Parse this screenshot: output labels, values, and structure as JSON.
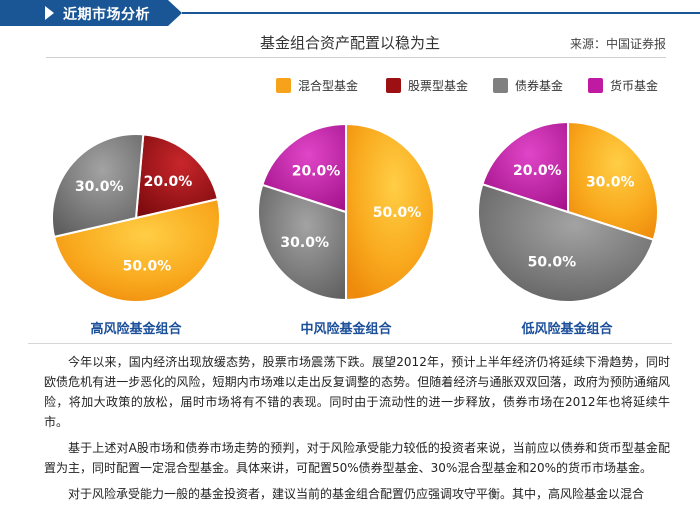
{
  "section": {
    "title": "近期市场分析"
  },
  "chart_data": {
    "type": "pie",
    "title": "基金组合资产配置以稳为主",
    "source": "来源：中国证券报",
    "legend": [
      {
        "name": "混合型基金",
        "color": "#f7a21b"
      },
      {
        "name": "股票型基金",
        "color": "#9c0f13"
      },
      {
        "name": "债券基金",
        "color": "#808080"
      },
      {
        "name": "货币基金",
        "color": "#c01aa3"
      }
    ],
    "pies": [
      {
        "label": "高风险基金组合",
        "slices": [
          {
            "name": "股票型基金",
            "value": 20.0,
            "display": "20.0%"
          },
          {
            "name": "混合型基金",
            "value": 50.0,
            "display": "50.0%"
          },
          {
            "name": "债券基金",
            "value": 30.0,
            "display": "30.0%"
          }
        ]
      },
      {
        "label": "中风险基金组合",
        "slices": [
          {
            "name": "混合型基金",
            "value": 50.0,
            "display": "50.0%"
          },
          {
            "name": "债券基金",
            "value": 30.0,
            "display": "30.0%"
          },
          {
            "name": "货币基金",
            "value": 20.0,
            "display": "20.0%"
          }
        ]
      },
      {
        "label": "低风险基金组合",
        "slices": [
          {
            "name": "混合型基金",
            "value": 30.0,
            "display": "30.0%"
          },
          {
            "name": "债券基金",
            "value": 50.0,
            "display": "50.0%"
          },
          {
            "name": "货币基金",
            "value": 20.0,
            "display": "20.0%"
          }
        ]
      }
    ]
  },
  "article": {
    "paragraphs": [
      "今年以来，国内经济出现放缓态势，股票市场震荡下跌。展望2012年，预计上半年经济仍将延续下滑趋势，同时欧债危机有进一步恶化的风险，短期内市场难以走出反复调整的态势。但随着经济与通胀双双回落，政府为预防通缩风险，将加大政策的放松，届时市场将有不错的表现。同时由于流动性的进一步释放，债券市场在2012年也将延续牛市。",
      "基于上述对A股市场和债券市场走势的预判，对于风险承受能力较低的投资者来说，当前应以债券和货币型基金配置为主，同时配置一定混合型基金。具体来讲，可配置50%债券型基金、30%混合型基金和20%的货币市场基金。",
      "对于风险承受能力一般的基金投资者，建议当前的基金组合配置仍应强调攻守平衡。其中，高风险基金以混合"
    ]
  }
}
